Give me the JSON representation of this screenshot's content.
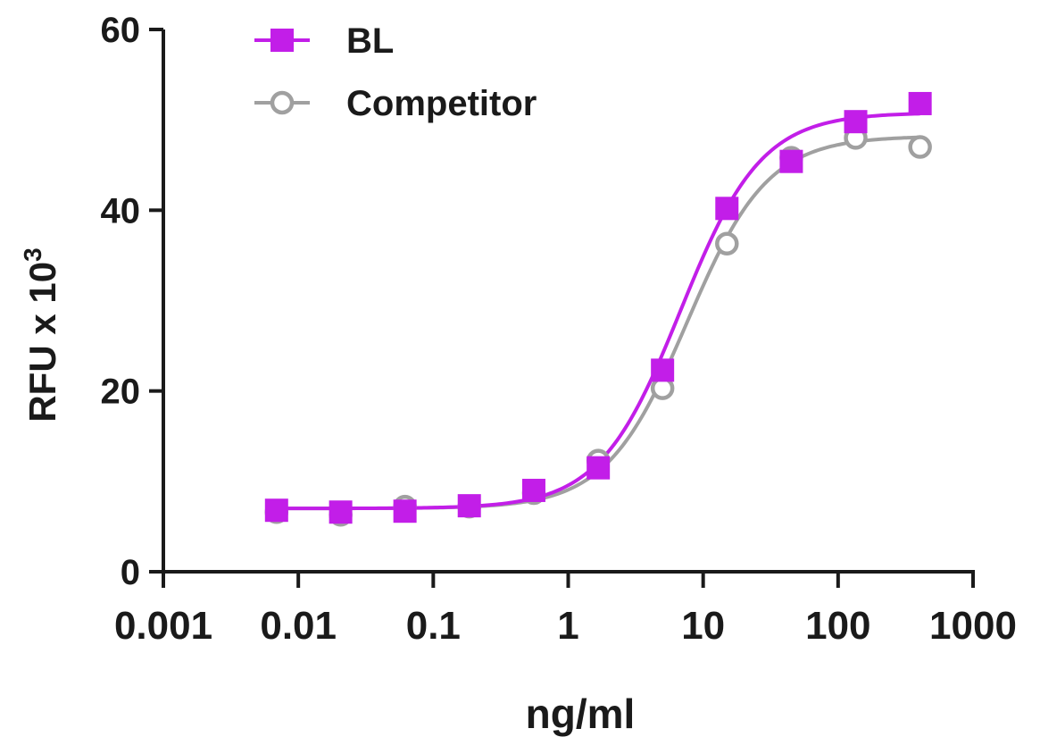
{
  "chart_data": {
    "type": "scatter",
    "xlabel": "ng/ml",
    "ylabel": "RFU x 10",
    "ylabel_superscript": "3",
    "x_scale": "log",
    "xlim": [
      0.001,
      1000
    ],
    "ylim": [
      0,
      60
    ],
    "x_ticks": [
      0.001,
      0.01,
      0.1,
      1,
      10,
      100,
      1000
    ],
    "x_tick_labels": [
      "0.001",
      "0.01",
      "0.1",
      "1",
      "10",
      "100",
      "1000"
    ],
    "y_ticks": [
      0,
      20,
      40,
      60
    ],
    "y_tick_labels": [
      "0",
      "20",
      "40",
      "60"
    ],
    "grid": false,
    "legend_position": "top-left",
    "x": [
      0.0069,
      0.0206,
      0.0617,
      0.185,
      0.556,
      1.67,
      5.0,
      15.0,
      45.0,
      135.0,
      405.0
    ],
    "series": [
      {
        "name": "BL",
        "color": "#c21ee8",
        "marker": "filled-square",
        "values": [
          6.8,
          6.6,
          6.7,
          7.3,
          9.0,
          11.5,
          22.3,
          40.2,
          45.4,
          49.8,
          51.8
        ],
        "fit": {
          "bottom": 7.0,
          "top": 50.8,
          "ec50": 6.8,
          "hill": 1.45
        }
      },
      {
        "name": "Competitor",
        "color": "#a0a0a0",
        "marker": "open-circle",
        "values": [
          6.6,
          6.3,
          7.2,
          7.2,
          8.7,
          12.3,
          20.3,
          36.3,
          45.8,
          48.0,
          47.0
        ],
        "fit": {
          "bottom": 7.0,
          "top": 48.2,
          "ec50": 7.6,
          "hill": 1.45
        }
      }
    ]
  }
}
